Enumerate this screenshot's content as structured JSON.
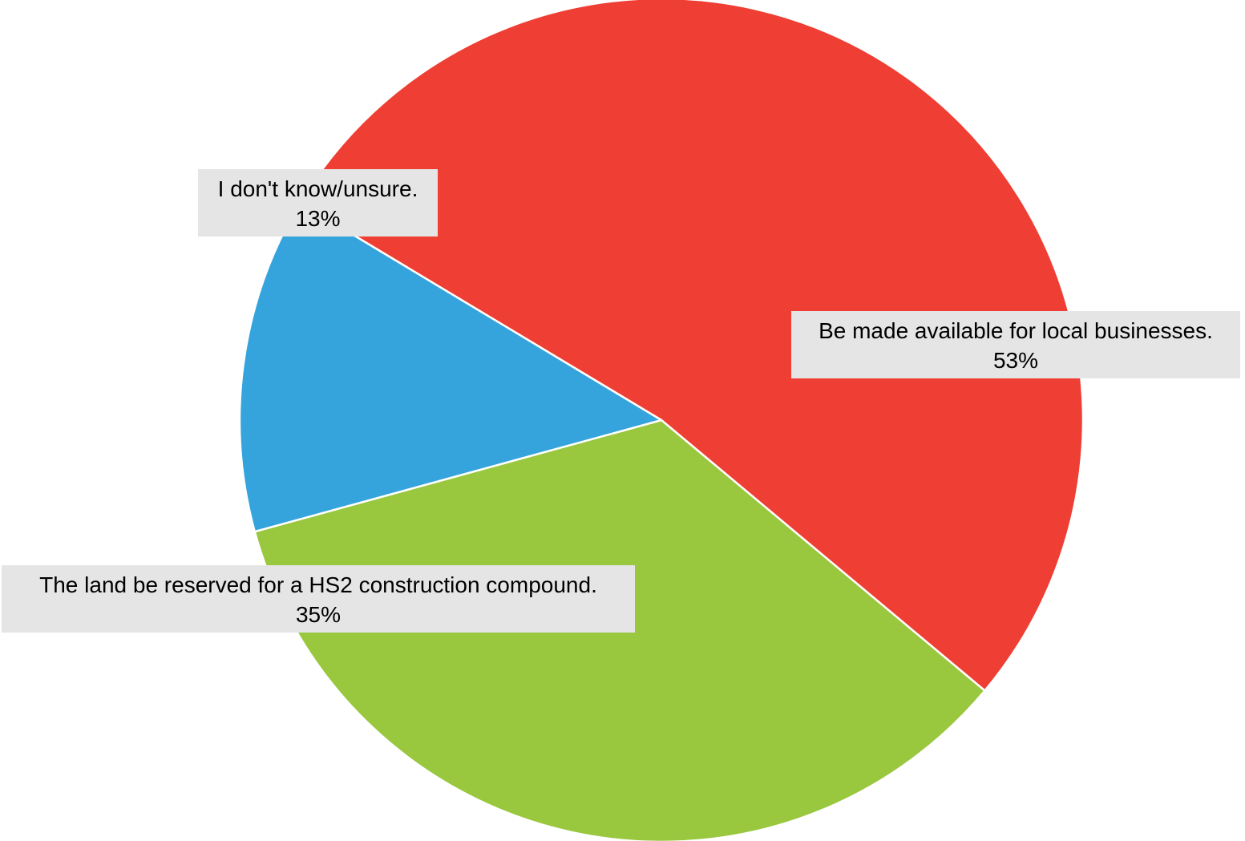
{
  "chart_data": {
    "type": "pie",
    "title": "",
    "slices": [
      {
        "label": "Be made available for local businesses.",
        "value": 53,
        "value_label": "53%",
        "color": "#ef3e33"
      },
      {
        "label": "The land be reserved for a HS2 construction compound.",
        "value": 35,
        "value_label": "35%",
        "color": "#99c73e"
      },
      {
        "label": "I don't know/unsure.",
        "value": 13,
        "value_label": "13%",
        "color": "#35a3dc"
      }
    ],
    "data_label_background": "#e5e5e5",
    "slice_border_color": "#ffffff",
    "legend": "none"
  }
}
